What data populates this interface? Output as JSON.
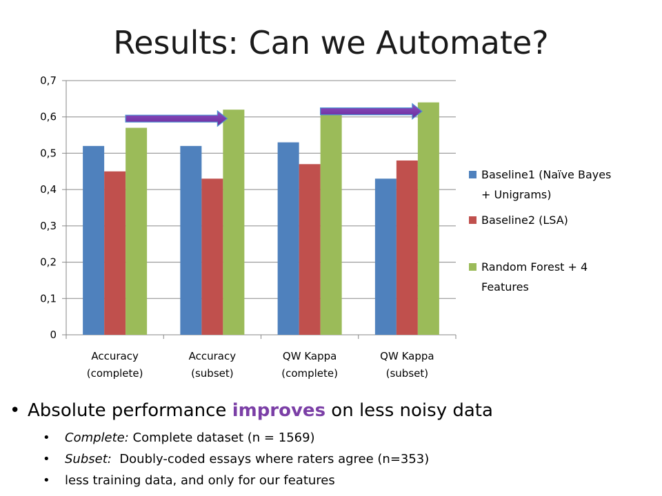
{
  "slide": {
    "title": "Results: Can we Automate?"
  },
  "chart_data": {
    "type": "bar",
    "title": "",
    "xlabel": "",
    "ylabel": "",
    "ylim": [
      0,
      0.7
    ],
    "yticks": [
      {
        "value": 0,
        "label": "0"
      },
      {
        "value": 0.1,
        "label": "0,1"
      },
      {
        "value": 0.2,
        "label": "0,2"
      },
      {
        "value": 0.3,
        "label": "0,3"
      },
      {
        "value": 0.4,
        "label": "0,4"
      },
      {
        "value": 0.5,
        "label": "0,5"
      },
      {
        "value": 0.6,
        "label": "0,6"
      },
      {
        "value": 0.7,
        "label": "0,7"
      }
    ],
    "grid": true,
    "legend_position": "right",
    "categories": [
      [
        "Accuracy",
        "(complete)"
      ],
      [
        "Accuracy",
        "(subset)"
      ],
      [
        "QW Kappa",
        "(complete)"
      ],
      [
        "QW Kappa",
        "(subset)"
      ]
    ],
    "series": [
      {
        "name": [
          "Baseline1 (Naïve Bayes",
          "+ Unigrams)"
        ],
        "color": "#4f81bd",
        "values": [
          0.52,
          0.52,
          0.53,
          0.43
        ]
      },
      {
        "name": [
          "Baseline2 (LSA)"
        ],
        "color": "#c0504d",
        "values": [
          0.45,
          0.43,
          0.47,
          0.48
        ]
      },
      {
        "name": [
          "Random Forest + 4",
          "Features"
        ],
        "color": "#9bbb59",
        "values": [
          0.57,
          0.62,
          0.62,
          0.64
        ]
      }
    ],
    "annotations": [
      {
        "type": "arrow",
        "color": "#7030a0",
        "from_category": 0,
        "to_category": 1
      },
      {
        "type": "arrow",
        "color": "#7030a0",
        "from_category": 2,
        "to_category": 3
      }
    ]
  },
  "bullets": {
    "main": {
      "before": "Absolute performance ",
      "highlight": "improves",
      "after": " on less noisy data"
    },
    "sub": [
      {
        "em": "Complete:",
        "text": " Complete dataset (n = 1569)"
      },
      {
        "em": "Subset:",
        "text": "  Doubly-coded essays where raters agree (n=353)"
      },
      {
        "em": "",
        "text": "less training data, and only for our features"
      }
    ],
    "bullet_char": "•"
  }
}
